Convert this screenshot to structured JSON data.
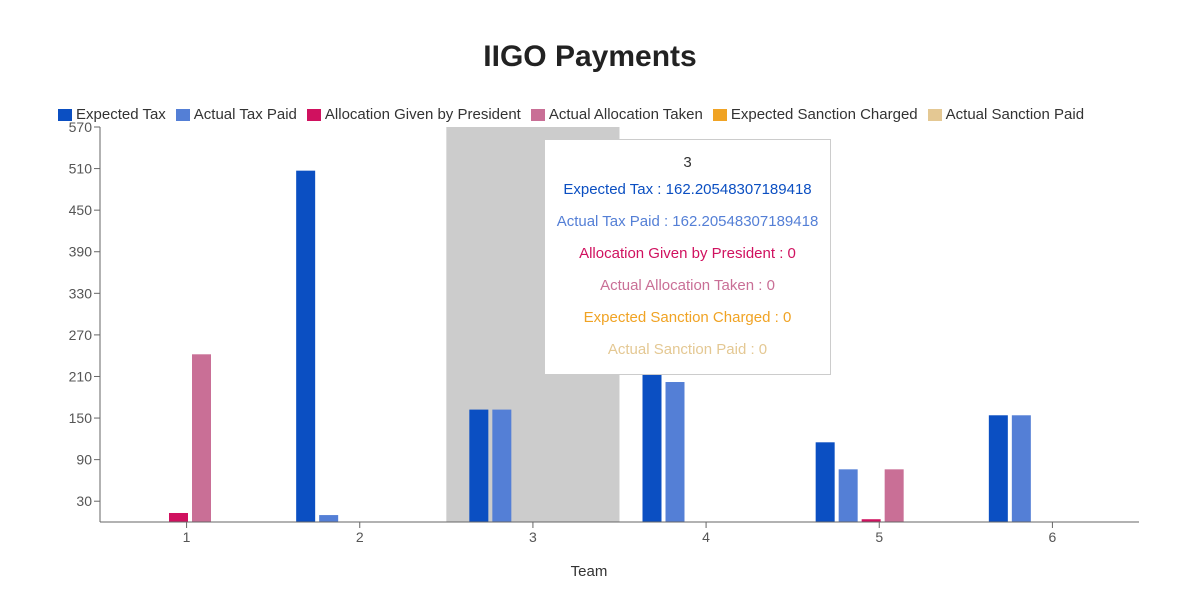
{
  "title": "IIGO Payments",
  "chart_data": {
    "type": "bar",
    "title": "IIGO Payments",
    "xlabel": "Team",
    "ylabel": "",
    "categories": [
      "1",
      "2",
      "3",
      "4",
      "5",
      "6"
    ],
    "ylim": [
      0,
      570
    ],
    "yticks": [
      30,
      90,
      150,
      210,
      270,
      330,
      390,
      450,
      510,
      570
    ],
    "grid": false,
    "legend_position": "top",
    "series": [
      {
        "name": "Expected Tax",
        "color": "#0b4fc2",
        "values": [
          0,
          507,
          162.2,
          225,
          115,
          154
        ]
      },
      {
        "name": "Actual Tax Paid",
        "color": "#547fd6",
        "values": [
          0,
          10,
          162.2,
          202,
          76,
          154
        ]
      },
      {
        "name": "Allocation Given by President",
        "color": "#d0115f",
        "values": [
          13,
          0,
          0,
          0,
          4,
          0
        ]
      },
      {
        "name": "Actual Allocation Taken",
        "color": "#c96f96",
        "values": [
          242,
          0,
          0,
          0,
          76,
          0
        ]
      },
      {
        "name": "Expected Sanction Charged",
        "color": "#f0a324",
        "values": [
          0,
          0,
          0,
          0,
          0,
          0
        ]
      },
      {
        "name": "Actual Sanction Paid",
        "color": "#e4c893",
        "values": [
          0,
          0,
          0,
          0,
          0,
          0
        ]
      }
    ],
    "highlight_category": "3"
  },
  "tooltip": {
    "label": "3",
    "rows": [
      {
        "text": "Expected Tax : 162.20548307189418",
        "color": "#0b4fc2"
      },
      {
        "text": "Actual Tax Paid : 162.20548307189418",
        "color": "#547fd6"
      },
      {
        "text": "Allocation Given by President : 0",
        "color": "#d0115f"
      },
      {
        "text": "Actual Allocation Taken : 0",
        "color": "#c96f96"
      },
      {
        "text": "Expected Sanction Charged : 0",
        "color": "#f0a324"
      },
      {
        "text": "Actual Sanction Paid : 0",
        "color": "#e4c893"
      }
    ]
  }
}
